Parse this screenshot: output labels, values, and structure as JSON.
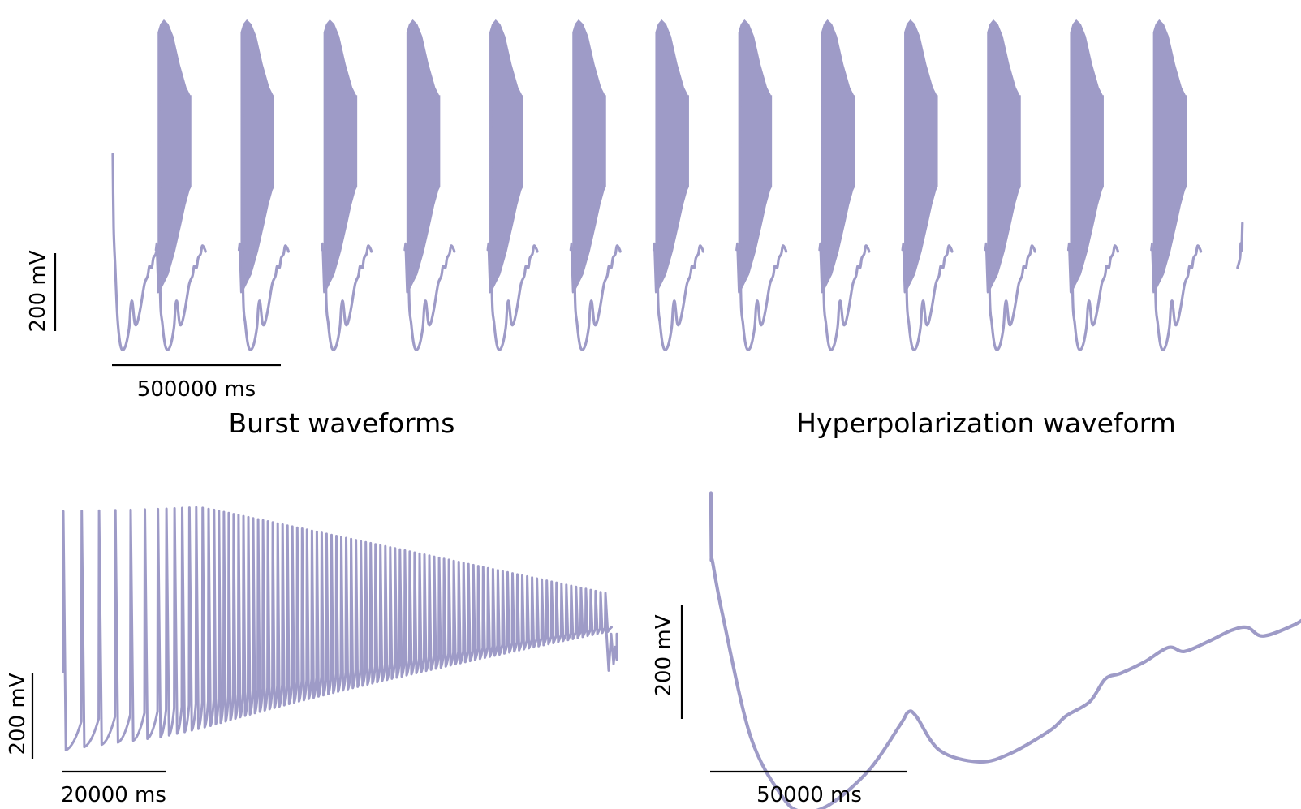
{
  "colors": {
    "trace": "#9e9bc7",
    "trace_edge": "#8c89bb",
    "scale_bar": "#000000"
  },
  "chart_data": [
    {
      "type": "line",
      "id": "full-trace",
      "title": "",
      "xlabel": "",
      "ylabel": "",
      "description_of_series": "membrane potential, repeated bursting cycles",
      "cycles": 14,
      "bursts": 13,
      "x_unit": "ms",
      "y_unit": "mV",
      "scale_bars": {
        "x": {
          "value": 500000,
          "label": "500000 ms"
        },
        "y": {
          "value": 200,
          "label": "200 mV"
        }
      },
      "events": [
        {
          "name": "initial spike",
          "t": 0,
          "v": 200
        },
        {
          "name": "trough",
          "v": -260
        },
        {
          "name": "burst peak max",
          "v": 375
        },
        {
          "name": "burst floor",
          "v": -5
        }
      ]
    },
    {
      "type": "line",
      "id": "burst-waveform",
      "title": "Burst waveforms",
      "xlabel": "",
      "ylabel": "",
      "spikes": 95,
      "x_unit": "ms",
      "y_unit": "mV",
      "scale_bars": {
        "x": {
          "value": 20000,
          "label": "20000 ms"
        },
        "y": {
          "value": 200,
          "label": "200 mV"
        }
      },
      "envelope": {
        "peak_start": 375,
        "peak_max": 385,
        "peak_end": 185,
        "trough_start": -180,
        "trough_end": 95
      }
    },
    {
      "type": "line",
      "id": "hyperpolarization-waveform",
      "title": "Hyperpolarization waveform",
      "xlabel": "",
      "ylabel": "",
      "x_unit": "ms",
      "y_unit": "mV",
      "scale_bars": {
        "x": {
          "value": 50000,
          "label": "50000 ms"
        },
        "y": {
          "value": 200,
          "label": "200 mV"
        }
      },
      "points": [
        [
          0,
          395
        ],
        [
          100,
          285
        ],
        [
          400,
          275
        ],
        [
          3000,
          180
        ],
        [
          10000,
          -30
        ],
        [
          18000,
          -135
        ],
        [
          23000,
          -162
        ],
        [
          30000,
          -150
        ],
        [
          40000,
          -90
        ],
        [
          48000,
          -10
        ],
        [
          50000,
          12
        ],
        [
          52000,
          5
        ],
        [
          58000,
          -55
        ],
        [
          68000,
          -75
        ],
        [
          76000,
          -60
        ],
        [
          86000,
          -20
        ],
        [
          90000,
          5
        ],
        [
          96000,
          30
        ],
        [
          100000,
          70
        ],
        [
          104000,
          80
        ],
        [
          110000,
          100
        ],
        [
          116000,
          125
        ],
        [
          120000,
          118
        ],
        [
          126000,
          135
        ],
        [
          132000,
          155
        ],
        [
          136000,
          160
        ],
        [
          140000,
          145
        ],
        [
          148000,
          165
        ],
        [
          154000,
          190
        ],
        [
          158000,
          178
        ],
        [
          162000,
          170
        ],
        [
          167000,
          190
        ],
        [
          168500,
          240
        ],
        [
          169000,
          290
        ]
      ]
    }
  ]
}
